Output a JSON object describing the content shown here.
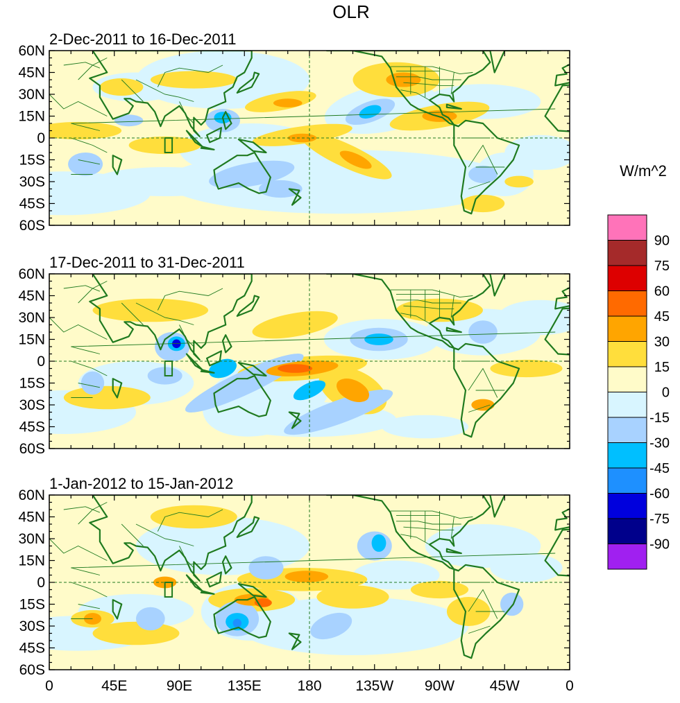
{
  "figure": {
    "title": "OLR"
  },
  "panels": [
    {
      "label": "2-Dec-2011 to 16-Dec-2011"
    },
    {
      "label": "17-Dec-2011 to 31-Dec-2011"
    },
    {
      "label": "1-Jan-2012 to 15-Jan-2012"
    }
  ],
  "lat_ticks": [
    "60N",
    "45N",
    "30N",
    "15N",
    "0",
    "15S",
    "30S",
    "45S",
    "60S"
  ],
  "lon_ticks": [
    "0",
    "45E",
    "90E",
    "135E",
    "180",
    "135W",
    "90W",
    "45W",
    "0"
  ],
  "colorbar": {
    "units": "W/m^2",
    "labels": [
      "90",
      "75",
      "60",
      "45",
      "30",
      "15",
      "0",
      "-15",
      "-30",
      "-45",
      "-60",
      "-75",
      "-90"
    ],
    "colors": [
      "#ff73b9",
      "#a52a2a",
      "#dd0000",
      "#ff6a00",
      "#ffa500",
      "#ffde3c",
      "#fffbc9",
      "#d8f5ff",
      "#a8d2ff",
      "#00bfff",
      "#1e90ff",
      "#0000dd",
      "#00008b",
      "#a020f0"
    ]
  },
  "map_style": {
    "coast_color": "#1f7a1f",
    "ocean_color": "#fffbc9"
  }
}
